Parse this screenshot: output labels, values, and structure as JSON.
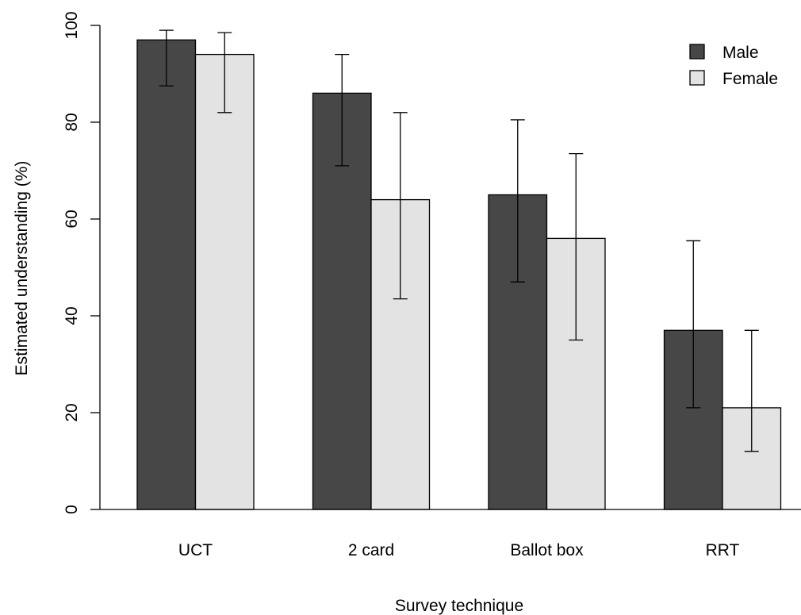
{
  "chart_data": {
    "type": "bar",
    "title": "",
    "xlabel": "Survey technique",
    "ylabel": "Estimated understanding (%)",
    "categories": [
      "UCT",
      "2 card",
      "Ballot box",
      "RRT"
    ],
    "ylim": [
      0,
      100
    ],
    "yticks": [
      0,
      20,
      40,
      60,
      80,
      100
    ],
    "grid": false,
    "legend_position": "top-right",
    "series": [
      {
        "name": "Male",
        "color": "#474747",
        "values": [
          97,
          86,
          65,
          37
        ],
        "error_low": [
          87.5,
          71,
          47,
          21
        ],
        "error_high": [
          99,
          94,
          80.5,
          55.5
        ]
      },
      {
        "name": "Female",
        "color": "#e3e3e3",
        "values": [
          94,
          64,
          56,
          21
        ],
        "error_low": [
          82,
          43.5,
          35,
          12
        ],
        "error_high": [
          98.5,
          82,
          73.5,
          37
        ]
      }
    ]
  }
}
